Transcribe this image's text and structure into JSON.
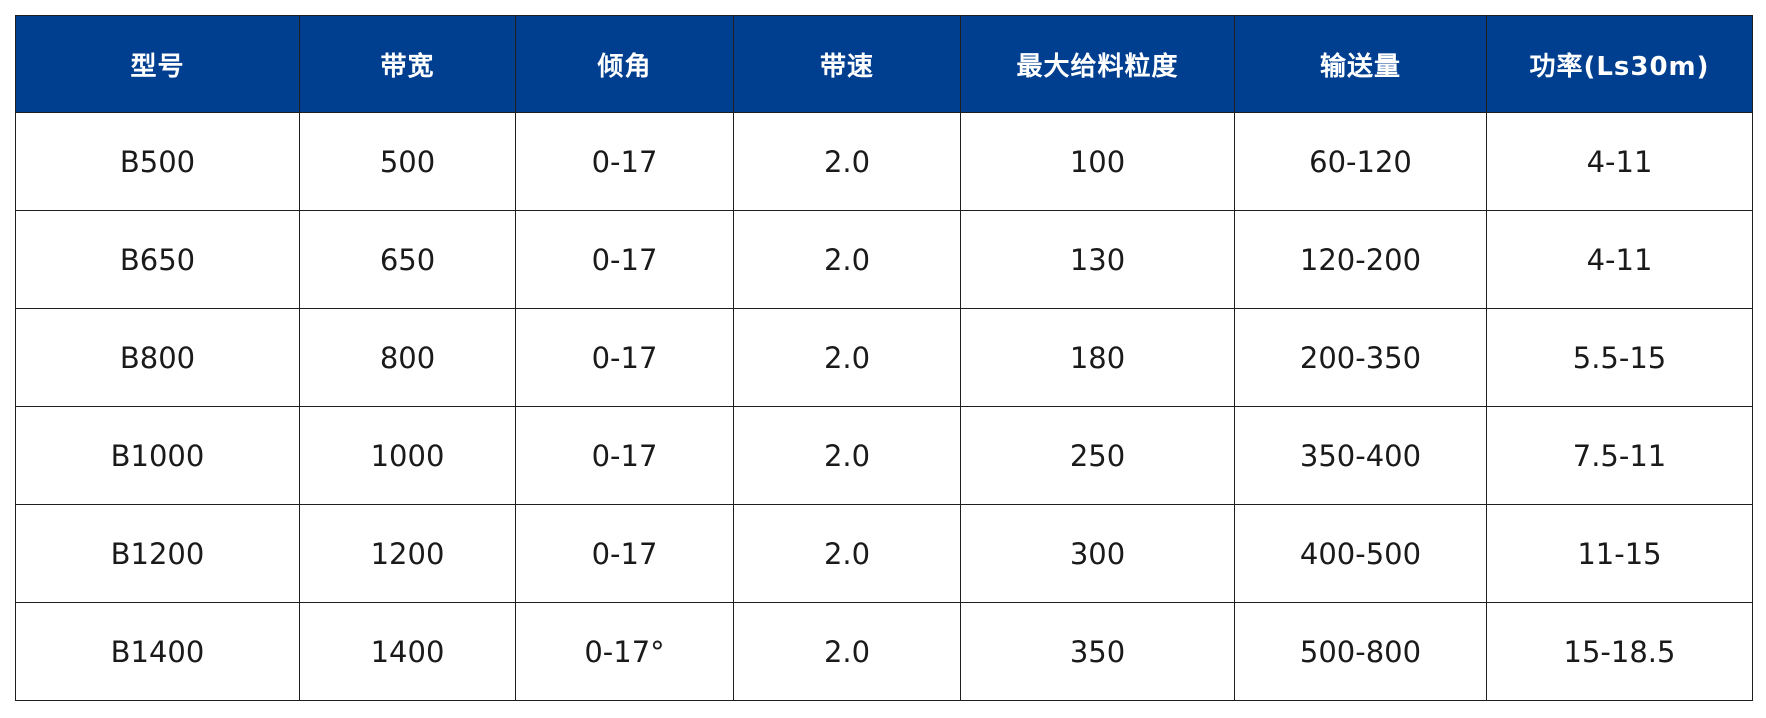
{
  "table": {
    "headers": [
      "型号",
      "带宽",
      "倾角",
      "带速",
      "最大给料粒度",
      "输送量",
      "功率(Ls30m)"
    ],
    "rows": [
      [
        "B500",
        "500",
        "0-17",
        "2.0",
        "100",
        "60-120",
        "4-11"
      ],
      [
        "B650",
        "650",
        "0-17",
        "2.0",
        "130",
        "120-200",
        "4-11"
      ],
      [
        "B800",
        "800",
        "0-17",
        "2.0",
        "180",
        "200-350",
        "5.5-15"
      ],
      [
        "B1000",
        "1000",
        "0-17",
        "2.0",
        "250",
        "350-400",
        "7.5-11"
      ],
      [
        "B1200",
        "1200",
        "0-17",
        "2.0",
        "300",
        "400-500",
        "11-15"
      ],
      [
        "B1400",
        "1400",
        "0-17°",
        "2.0",
        "350",
        "500-800",
        "15-18.5"
      ]
    ]
  },
  "colors": {
    "header_background": "#003e8f",
    "header_text": "#ffffff",
    "border": "#1f1f1f",
    "cell_text": "#1a1a1a"
  }
}
